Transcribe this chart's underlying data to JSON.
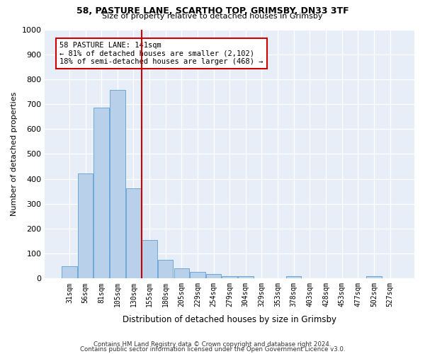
{
  "title_line1": "58, PASTURE LANE, SCARTHO TOP, GRIMSBY, DN33 3TF",
  "title_line2": "Size of property relative to detached houses in Grimsby",
  "xlabel": "Distribution of detached houses by size in Grimsby",
  "ylabel": "Number of detached properties",
  "categories": [
    "31sqm",
    "56sqm",
    "81sqm",
    "105sqm",
    "130sqm",
    "155sqm",
    "180sqm",
    "205sqm",
    "229sqm",
    "254sqm",
    "279sqm",
    "304sqm",
    "329sqm",
    "353sqm",
    "378sqm",
    "403sqm",
    "428sqm",
    "453sqm",
    "477sqm",
    "502sqm",
    "527sqm"
  ],
  "values": [
    50,
    422,
    686,
    757,
    362,
    153,
    75,
    40,
    27,
    18,
    10,
    10,
    0,
    0,
    8,
    0,
    0,
    0,
    0,
    10,
    0
  ],
  "bar_color": "#b8d0ea",
  "bar_edge_color": "#6fa8d6",
  "grid_color": "#d0d8e8",
  "vline_x": 4.5,
  "vline_color": "#cc0000",
  "annotation_title": "58 PASTURE LANE: 141sqm",
  "annotation_line1": "← 81% of detached houses are smaller (2,102)",
  "annotation_line2": "18% of semi-detached houses are larger (468) →",
  "annotation_box_color": "#cc0000",
  "footnote1": "Contains HM Land Registry data © Crown copyright and database right 2024.",
  "footnote2": "Contains public sector information licensed under the Open Government Licence v3.0.",
  "ylim": [
    0,
    1000
  ],
  "yticks": [
    0,
    100,
    200,
    300,
    400,
    500,
    600,
    700,
    800,
    900,
    1000
  ],
  "bg_color": "#e8eef8"
}
